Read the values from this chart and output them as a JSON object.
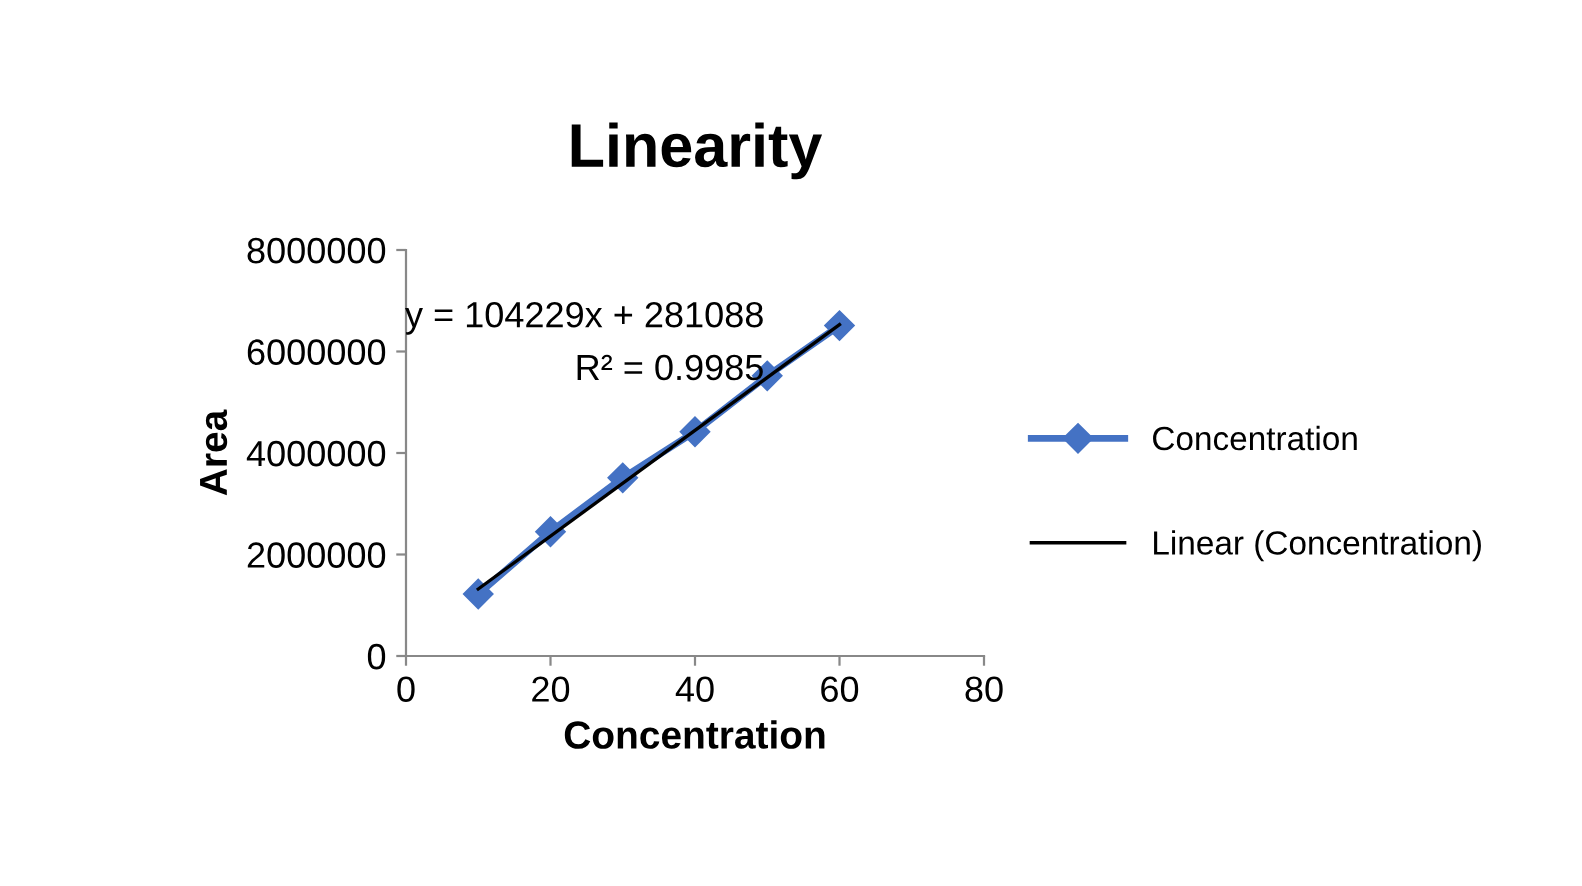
{
  "chart_data": {
    "type": "line",
    "title": "Linearity",
    "xlabel": "Concentration",
    "ylabel": "Area",
    "series": [
      {
        "name": "Concentration",
        "color": "#4472c4",
        "marker": "diamond",
        "x": [
          10,
          20,
          30,
          40,
          50,
          60
        ],
        "values": [
          1220000,
          2450000,
          3510000,
          4420000,
          5520000,
          6510000
        ]
      },
      {
        "name": "Linear (Concentration)",
        "type": "line",
        "color": "#000000",
        "marker": "none",
        "x": [
          10,
          60
        ],
        "values": [
          1320000,
          6530000
        ]
      }
    ],
    "annotations": [
      "y = 104229x + 281088",
      "R² = 0.9985"
    ],
    "xlim": [
      0,
      80
    ],
    "xticks": [
      0,
      20,
      40,
      60,
      80
    ],
    "ylim": [
      0,
      8000000
    ],
    "yticks": [
      0,
      2000000,
      4000000,
      6000000,
      8000000
    ],
    "grid": false,
    "legend": "right"
  }
}
